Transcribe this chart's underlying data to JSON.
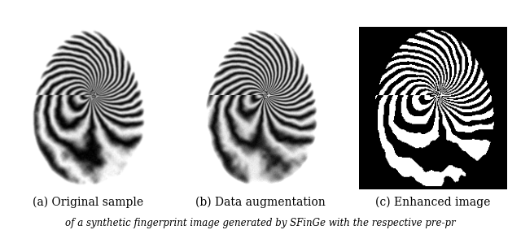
{
  "caption_a": "(a) Original sample",
  "caption_b": "(b) Data augmentation",
  "caption_c": "(c) Enhanced image",
  "bottom_text": "of a synthetic fingerprint image generated by SFinGe with the respective pre-pr",
  "fig_width": 6.4,
  "fig_height": 2.99,
  "background_color": "#ffffff",
  "caption_fontsize": 10
}
